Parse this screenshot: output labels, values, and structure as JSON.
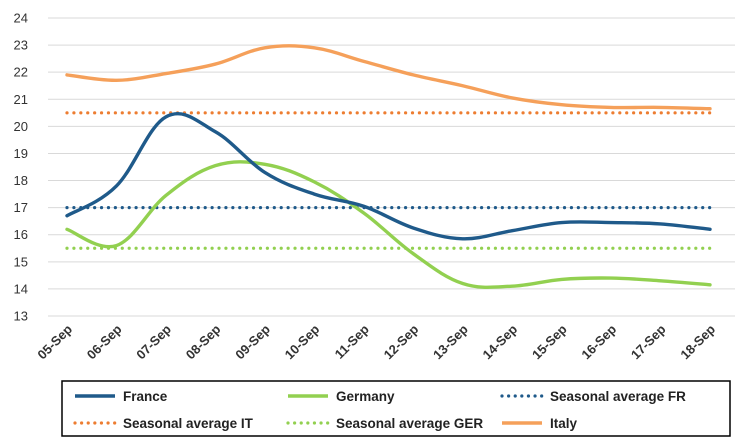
{
  "chart_data": {
    "type": "line",
    "title": "",
    "xlabel": "",
    "ylabel": "",
    "ylim": [
      13,
      24
    ],
    "yticks": [
      "13",
      "14",
      "15",
      "16",
      "17",
      "18",
      "19",
      "20",
      "21",
      "22",
      "23",
      "24"
    ],
    "grid": true,
    "legend_position": "bottom",
    "categories": [
      "05-Sep",
      "06-Sep",
      "07-Sep",
      "08-Sep",
      "09-Sep",
      "10-Sep",
      "11-Sep",
      "12-Sep",
      "13-Sep",
      "14-Sep",
      "15-Sep",
      "16-Sep",
      "17-Sep",
      "18-Sep"
    ],
    "series": [
      {
        "name": "France",
        "style": "solid",
        "color": "#1f5a8a",
        "values": [
          16.7,
          17.8,
          20.35,
          19.8,
          18.3,
          17.5,
          17.05,
          16.25,
          15.85,
          16.15,
          16.45,
          16.45,
          16.4,
          16.2
        ]
      },
      {
        "name": "Germany",
        "style": "solid",
        "color": "#92d050",
        "values": [
          16.2,
          15.6,
          17.45,
          18.55,
          18.6,
          17.95,
          16.8,
          15.3,
          14.2,
          14.1,
          14.35,
          14.4,
          14.3,
          14.15
        ]
      },
      {
        "name": "Seasonal average FR",
        "style": "dotted",
        "color": "#1f5a8a",
        "values": [
          17.0,
          17.0,
          17.0,
          17.0,
          17.0,
          17.0,
          17.0,
          17.0,
          17.0,
          17.0,
          17.0,
          17.0,
          17.0,
          17.0
        ]
      },
      {
        "name": "Seasonal average IT",
        "style": "dotted",
        "color": "#ed7d31",
        "values": [
          20.5,
          20.5,
          20.5,
          20.5,
          20.5,
          20.5,
          20.5,
          20.5,
          20.5,
          20.5,
          20.5,
          20.5,
          20.5,
          20.5
        ]
      },
      {
        "name": "Seasonal average GER",
        "style": "dotted",
        "color": "#92d050",
        "values": [
          15.5,
          15.5,
          15.5,
          15.5,
          15.5,
          15.5,
          15.5,
          15.5,
          15.5,
          15.5,
          15.5,
          15.5,
          15.5,
          15.5
        ]
      },
      {
        "name": "Italy",
        "style": "solid",
        "color": "#f5a05a",
        "values": [
          21.9,
          21.7,
          21.95,
          22.3,
          22.9,
          22.9,
          22.4,
          21.9,
          21.5,
          21.05,
          20.8,
          20.7,
          20.7,
          20.65
        ]
      }
    ]
  }
}
